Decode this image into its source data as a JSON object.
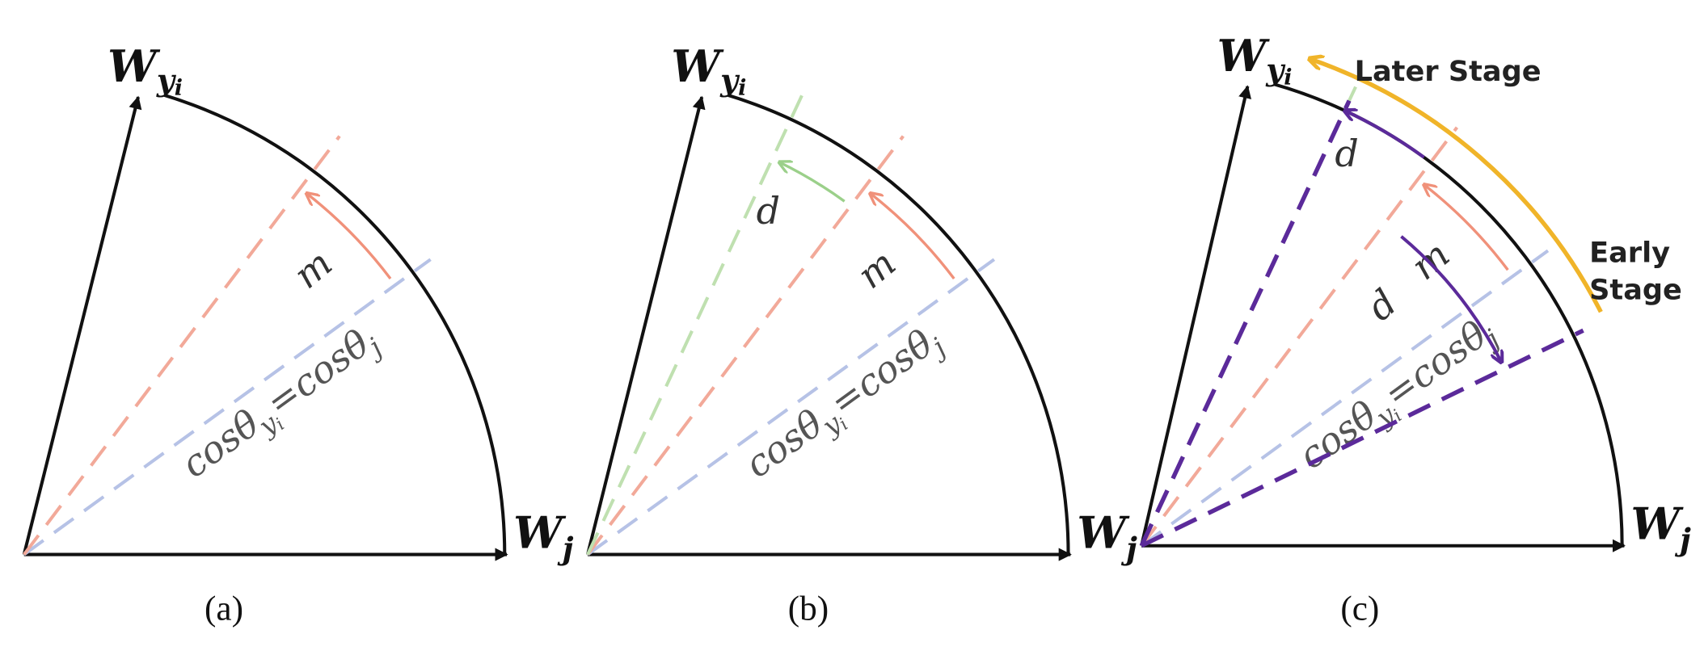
{
  "panels": [
    {
      "caption": "(a)",
      "top_axis": {
        "base": "W",
        "sub": "y",
        "subsub": "i"
      },
      "right_axis": {
        "base": "W",
        "sub": "j"
      },
      "margin": "m",
      "equation": {
        "lhs": "cosθ",
        "lhs_sub": "y",
        "lhs_subsub": "i",
        "op": "=",
        "rhs": "cosθ",
        "rhs_sub": "j"
      }
    },
    {
      "caption": "(b)",
      "top_axis": {
        "base": "W",
        "sub": "y",
        "subsub": "i"
      },
      "right_axis": {
        "base": "W",
        "sub": "j"
      },
      "margin": "m",
      "shift_labels": [
        "d"
      ],
      "equation": {
        "lhs": "cosθ",
        "lhs_sub": "y",
        "lhs_subsub": "i",
        "op": "=",
        "rhs": "cosθ",
        "rhs_sub": "j"
      }
    },
    {
      "caption": "(c)",
      "top_axis": {
        "base": "W",
        "sub": "y",
        "subsub": "i"
      },
      "right_axis": {
        "base": "W",
        "sub": "j"
      },
      "margin": "m",
      "shift_labels": [
        "d",
        "d"
      ],
      "equation": {
        "lhs": "cosθ",
        "lhs_sub": "y",
        "lhs_subsub": "i",
        "op": "=",
        "rhs": "cosθ",
        "rhs_sub": "j"
      },
      "later_stage": "Later Stage",
      "early_stage": [
        "Early",
        "Stage"
      ]
    }
  ]
}
